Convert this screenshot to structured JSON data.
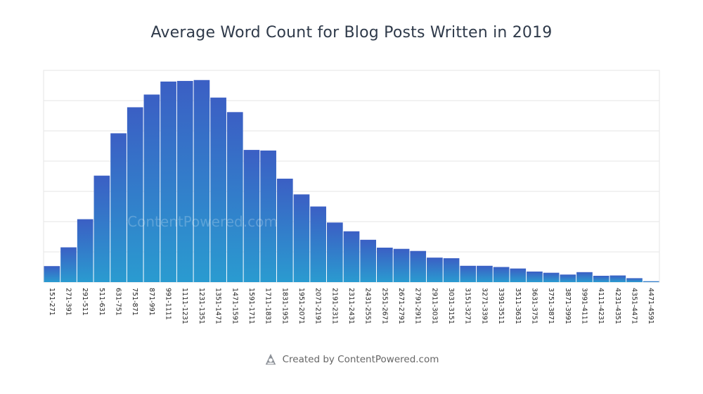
{
  "title": "Average Word Count for Blog Posts Written in 2019",
  "watermark": "ContentPowered.com",
  "footer": {
    "credit": "Created by ContentPowered.com",
    "icon": "contentpowered-logo-icon"
  },
  "colors": {
    "bar_top": "#3b5fc4",
    "bar_bottom": "#2a9bd0",
    "grid": "#e6e6e6",
    "title": "#2f3a4a"
  },
  "chart_data": {
    "type": "bar",
    "title": "Average Word Count for Blog Posts Written in 2019",
    "xlabel": "",
    "ylabel": "",
    "grid": true,
    "ylim": [
      0,
      7
    ],
    "categories": [
      "151-271",
      "271-391",
      "291-511",
      "511-631",
      "631-751",
      "751-871",
      "871-991",
      "991-1111",
      "1111-1231",
      "1231-1351",
      "1351-1471",
      "1471-1591",
      "1591-1711",
      "1711-1831",
      "1831-1951",
      "1951-2071",
      "2071-2191",
      "2191-2311",
      "2311-2431",
      "2431-2551",
      "2551-2671",
      "2671-2791",
      "2791-2911",
      "2911-3031",
      "3031-3151",
      "3151-3271",
      "3271-3391",
      "3391-3511",
      "3511-3631",
      "3631-3751",
      "3751-3871",
      "3871-3991",
      "3991-4111",
      "4111-4231",
      "4231-4351",
      "4351-4471",
      "4471-4591"
    ],
    "values": [
      0.53,
      1.15,
      2.08,
      3.52,
      4.92,
      5.78,
      6.2,
      6.63,
      6.65,
      6.68,
      6.1,
      5.62,
      4.37,
      4.35,
      3.42,
      2.9,
      2.5,
      1.97,
      1.68,
      1.4,
      1.14,
      1.1,
      1.03,
      0.81,
      0.79,
      0.54,
      0.54,
      0.5,
      0.45,
      0.35,
      0.31,
      0.25,
      0.33,
      0.21,
      0.22,
      0.13,
      0.03
    ]
  }
}
